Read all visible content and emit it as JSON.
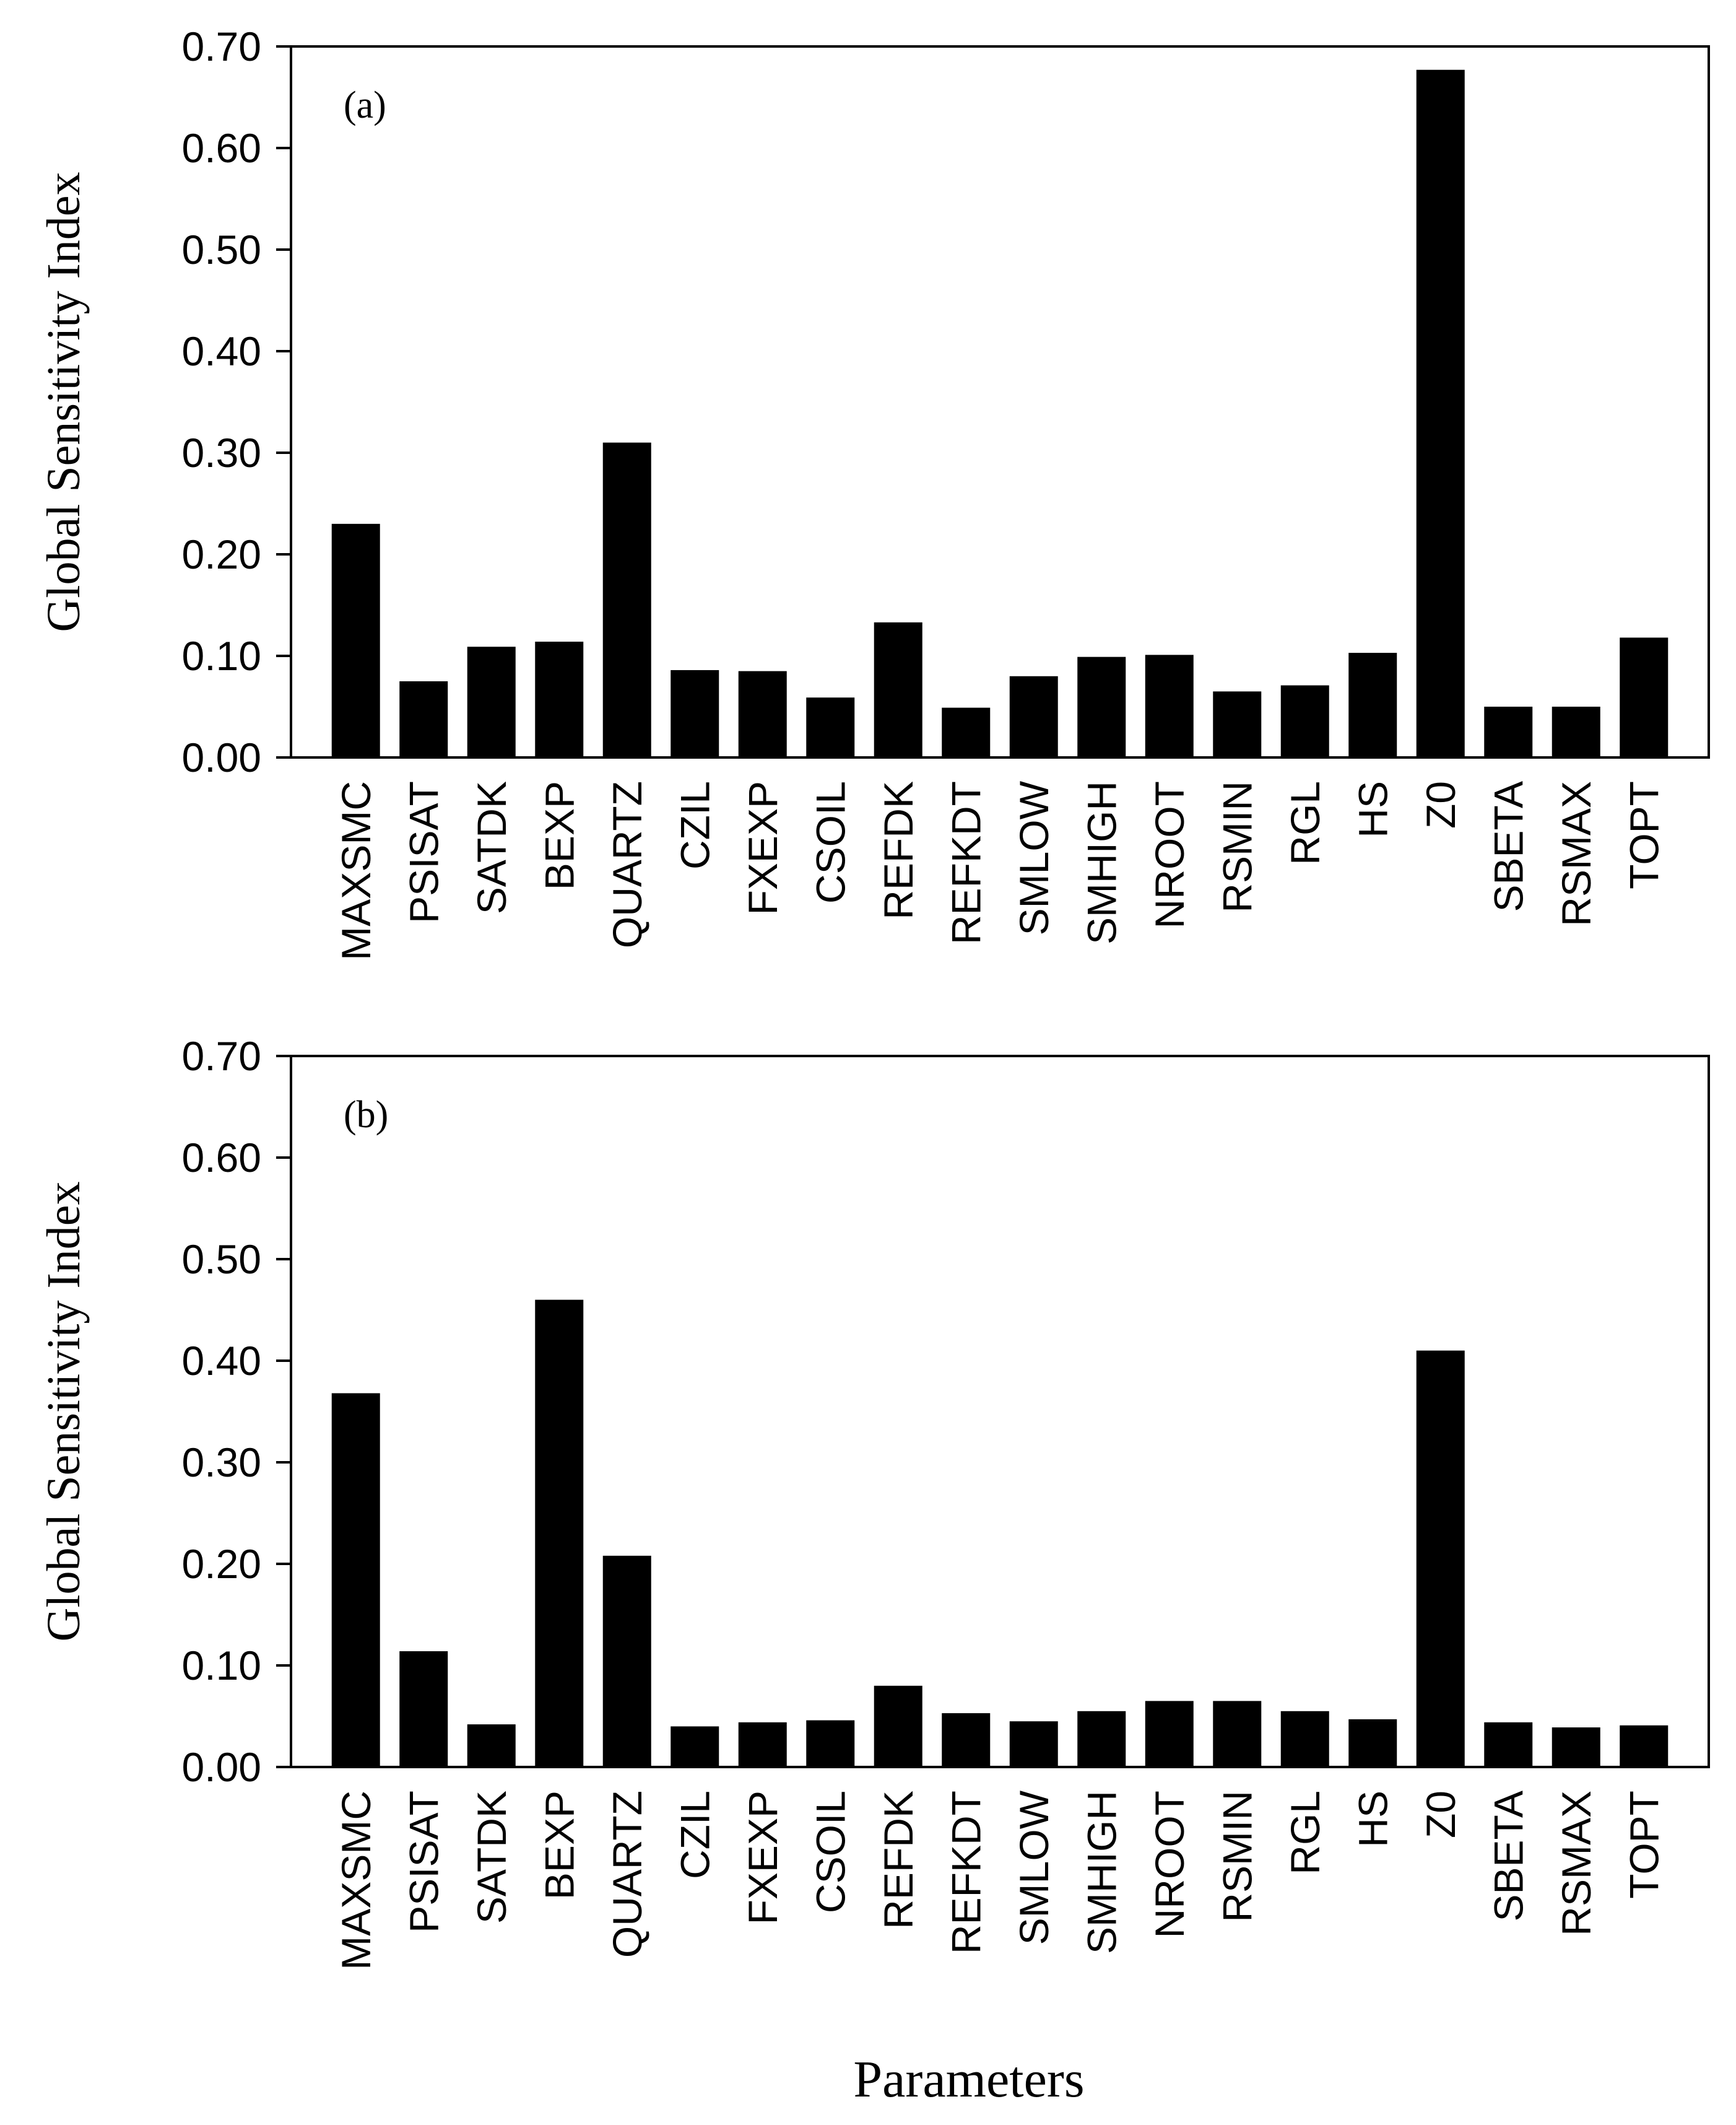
{
  "xlabel": "Parameters",
  "chart_data": [
    {
      "type": "bar",
      "panel_label": "(a)",
      "ylabel": "Global Sensitivity Index",
      "ylim": [
        0,
        0.7
      ],
      "yticks": [
        "0.00",
        "0.10",
        "0.20",
        "0.30",
        "0.40",
        "0.50",
        "0.60",
        "0.70"
      ],
      "categories": [
        "MAXSMC",
        "PSISAT",
        "SATDK",
        "BEXP",
        "QUARTZ",
        "CZIL",
        "FXEXP",
        "CSOIL",
        "REFDK",
        "REFKDT",
        "SMLOW",
        "SMHIGH",
        "NROOT",
        "RSMIN",
        "RGL",
        "HS",
        "Z0",
        "SBETA",
        "RSMAX",
        "TOPT"
      ],
      "values": [
        0.23,
        0.075,
        0.109,
        0.114,
        0.31,
        0.086,
        0.085,
        0.059,
        0.133,
        0.049,
        0.08,
        0.099,
        0.101,
        0.065,
        0.071,
        0.103,
        0.677,
        0.05,
        0.05,
        0.118
      ],
      "bar_color": "#000000"
    },
    {
      "type": "bar",
      "panel_label": "(b)",
      "ylabel": "Global Sensitivity Index",
      "ylim": [
        0,
        0.7
      ],
      "yticks": [
        "0.00",
        "0.10",
        "0.20",
        "0.30",
        "0.40",
        "0.50",
        "0.60",
        "0.70"
      ],
      "categories": [
        "MAXSMC",
        "PSISAT",
        "SATDK",
        "BEXP",
        "QUARTZ",
        "CZIL",
        "FXEXP",
        "CSOIL",
        "REFDK",
        "REFKDT",
        "SMLOW",
        "SMHIGH",
        "NROOT",
        "RSMIN",
        "RGL",
        "HS",
        "Z0",
        "SBETA",
        "RSMAX",
        "TOPT"
      ],
      "values": [
        0.368,
        0.114,
        0.042,
        0.46,
        0.208,
        0.04,
        0.044,
        0.046,
        0.08,
        0.053,
        0.045,
        0.055,
        0.065,
        0.065,
        0.055,
        0.047,
        0.41,
        0.044,
        0.039,
        0.041
      ],
      "bar_color": "#000000"
    }
  ]
}
